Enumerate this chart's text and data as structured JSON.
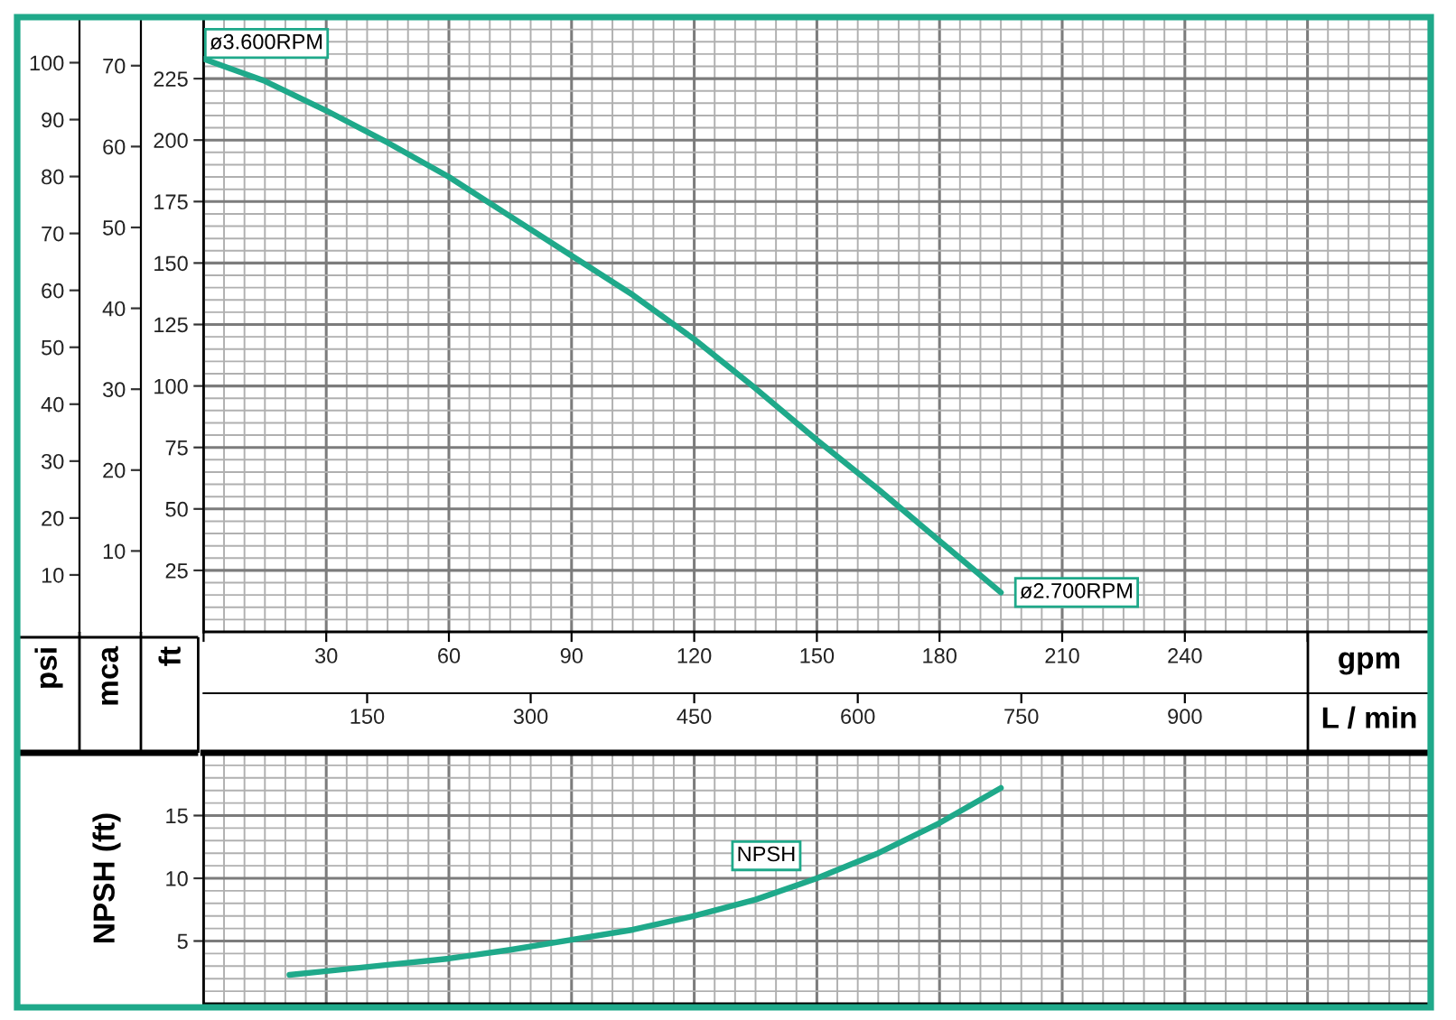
{
  "chart_data": [
    {
      "type": "line",
      "xlabel": "gpm",
      "x2label": "L / min",
      "ylabel": "ft",
      "y2label": "mca",
      "y3label": "psi",
      "xlim": [
        0,
        300
      ],
      "xticks": [
        {
          "value": 0,
          "label": null
        },
        30,
        60,
        90,
        120,
        150,
        180,
        210,
        240,
        {
          "value": 270,
          "label": null
        },
        {
          "value": 300,
          "label": null
        }
      ],
      "x2lim": [
        0,
        1125
      ],
      "x2ticks": [
        150,
        300,
        450,
        600,
        750,
        900
      ],
      "ylim": [
        0,
        250
      ],
      "yticks": [
        25,
        50,
        75,
        100,
        125,
        150,
        175,
        200,
        225
      ],
      "y2lim": [
        0,
        76
      ],
      "y2ticks": [
        10,
        20,
        30,
        40,
        50,
        60,
        70
      ],
      "y3lim": [
        0,
        108
      ],
      "y3ticks": [
        10,
        20,
        30,
        40,
        50,
        60,
        70,
        80,
        90,
        100
      ],
      "grid": true,
      "series": [
        {
          "color": "#1fa98a",
          "x": [
            0,
            15,
            30,
            45,
            60,
            75,
            90,
            105,
            120,
            135,
            150,
            165,
            180,
            195
          ],
          "values": [
            233,
            224,
            212,
            199,
            185,
            169,
            153,
            137,
            119,
            99,
            78,
            58,
            37,
            16
          ]
        }
      ],
      "annotations": [
        {
          "text": "ø3.600RPM",
          "x": 0,
          "y": 233
        },
        {
          "text": "ø2.700RPM",
          "x": 195,
          "y": 16
        }
      ]
    },
    {
      "type": "line",
      "ylabel": "NPSH (ft)",
      "xlim": [
        0,
        300
      ],
      "xticks": [
        0,
        30,
        60,
        90,
        120,
        150,
        180,
        210,
        240,
        270,
        300
      ],
      "ylim": [
        0,
        20
      ],
      "yticks": [
        5,
        10,
        15
      ],
      "grid": true,
      "tick_labels": "y",
      "series": [
        {
          "name": "NPSH",
          "color": "#1fa98a",
          "x": [
            21,
            30,
            45,
            60,
            75,
            90,
            105,
            120,
            135,
            150,
            165,
            180,
            195
          ],
          "values": [
            2.3,
            2.6,
            3.1,
            3.6,
            4.3,
            5.1,
            5.9,
            7.0,
            8.3,
            10.0,
            12.0,
            14.4,
            17.2
          ]
        }
      ]
    }
  ]
}
